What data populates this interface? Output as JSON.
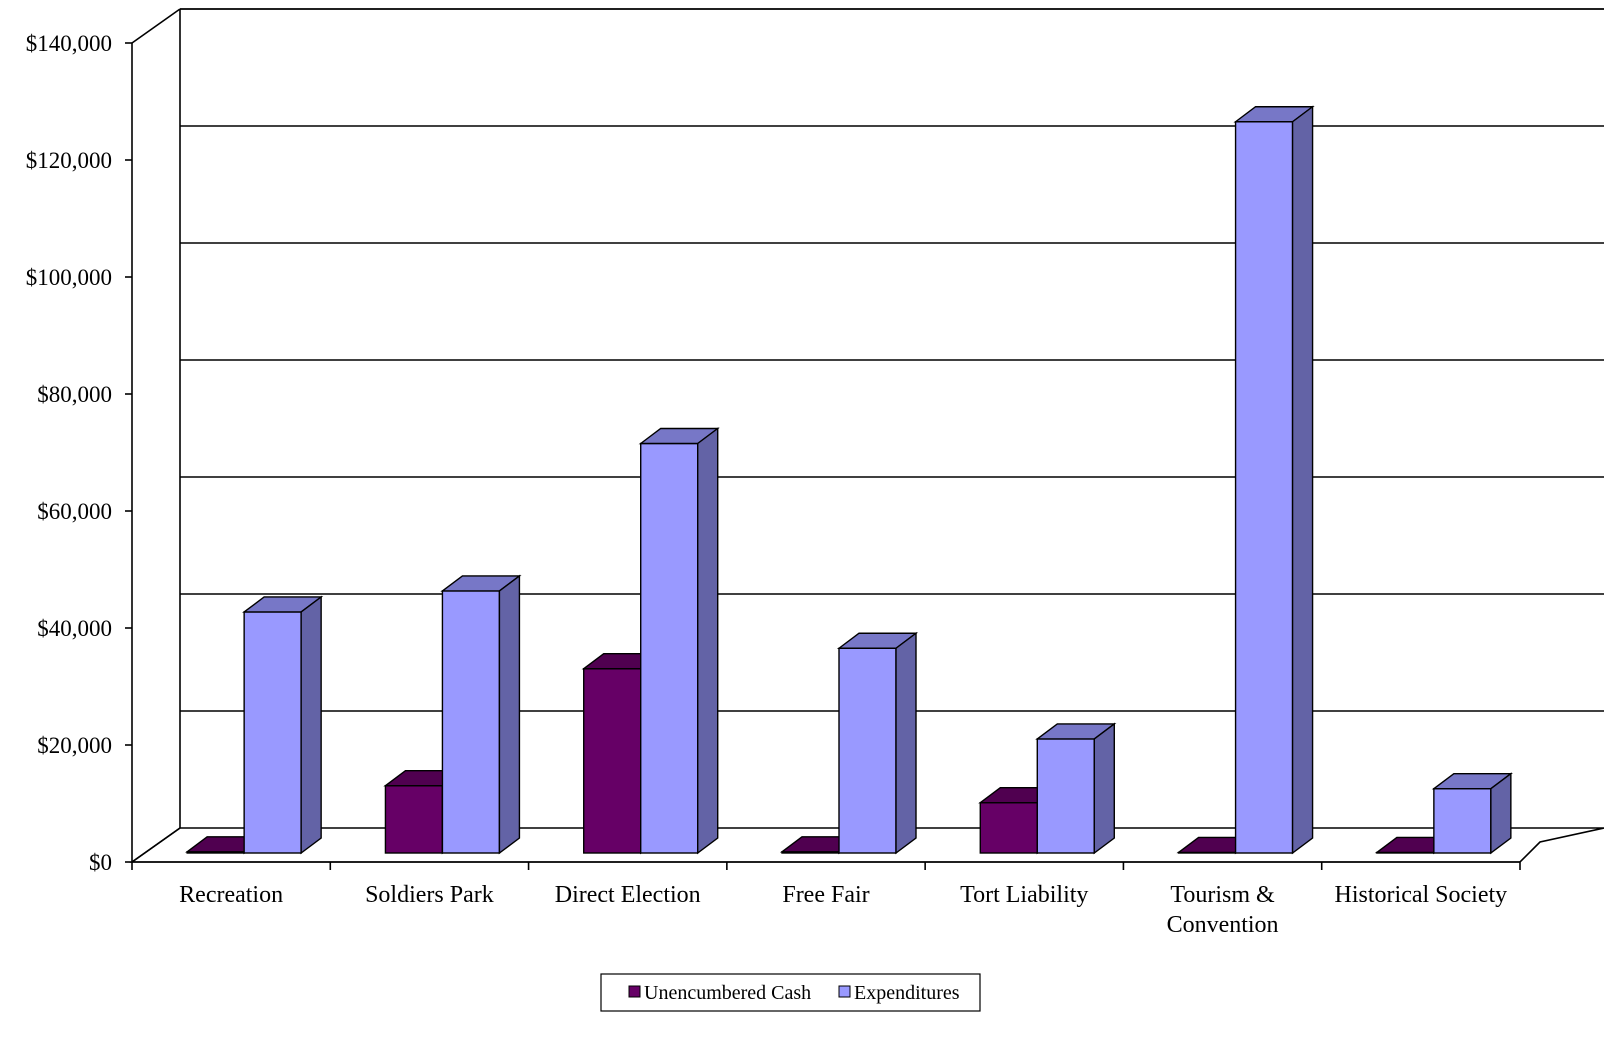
{
  "chart_data": {
    "type": "bar",
    "title": "",
    "xlabel": "",
    "ylabel": "",
    "categories": [
      [
        "Recreation"
      ],
      [
        "Soldiers Park"
      ],
      [
        "Direct Election"
      ],
      [
        "Free Fair"
      ],
      [
        "Tort Liability"
      ],
      [
        "Tourism &",
        "Convention"
      ],
      [
        "Historical Society"
      ]
    ],
    "series": [
      {
        "name": "Unencumbered Cash",
        "color": "#660066",
        "values": [
          200,
          11500,
          31500,
          200,
          8600,
          100,
          100
        ]
      },
      {
        "name": "Expenditures",
        "color": "#9999FF",
        "values": [
          41200,
          44800,
          70000,
          35000,
          19500,
          125000,
          11000
        ]
      }
    ],
    "ylim": [
      0,
      140000
    ],
    "yticks": [
      "$0",
      "$20,000",
      "$40,000",
      "$60,000",
      "$80,000",
      "$100,000",
      "$120,000",
      "$140,000"
    ],
    "grid": true,
    "legend_position": "bottom"
  }
}
